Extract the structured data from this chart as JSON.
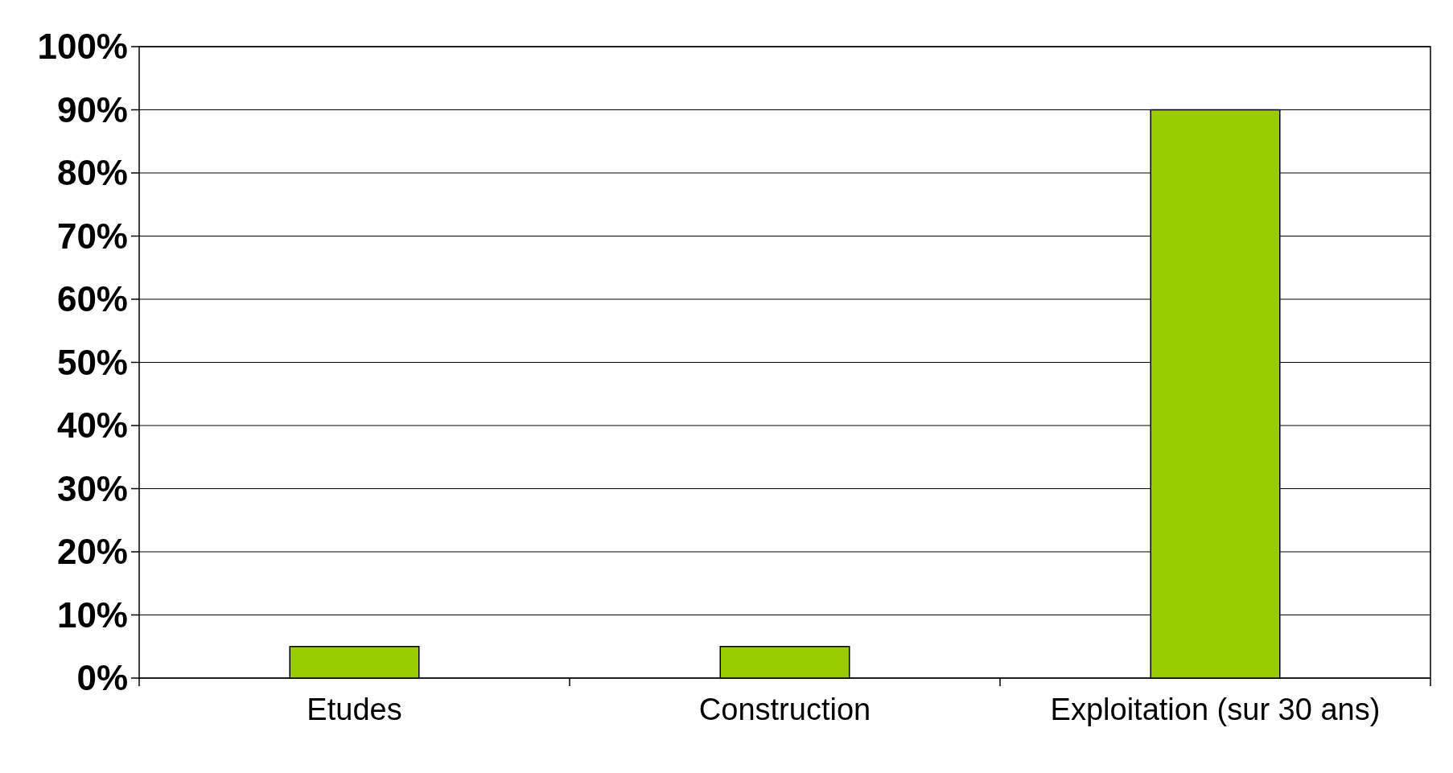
{
  "chart_data": {
    "type": "bar",
    "categories": [
      "Etudes",
      "Construction",
      "Exploitation (sur 30 ans)"
    ],
    "values": [
      5,
      5,
      90
    ],
    "color": "#99cc00",
    "ylim": [
      0,
      100
    ],
    "yticks": [
      {
        "value": 0,
        "label": "0%"
      },
      {
        "value": 10,
        "label": "10%"
      },
      {
        "value": 20,
        "label": "20%"
      },
      {
        "value": 30,
        "label": "30%"
      },
      {
        "value": 40,
        "label": "40%"
      },
      {
        "value": 50,
        "label": "50%"
      },
      {
        "value": 60,
        "label": "60%"
      },
      {
        "value": 70,
        "label": "70%"
      },
      {
        "value": 80,
        "label": "80%"
      },
      {
        "value": 90,
        "label": "90%"
      },
      {
        "value": 100,
        "label": "100%"
      }
    ],
    "grid": "y"
  }
}
